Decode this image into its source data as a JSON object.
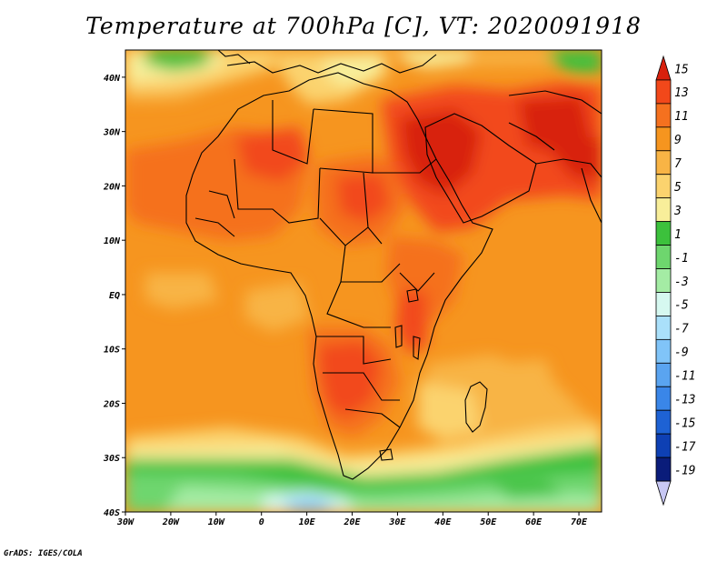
{
  "title": "Temperature at 700hPa [C], VT: 2020091918",
  "credit": "GrADS: IGES/COLA",
  "map": {
    "lon_range": [
      -30,
      75
    ],
    "lat_range": [
      -40,
      45
    ],
    "lon_ticks": [
      {
        "lon": -30,
        "label": "30W"
      },
      {
        "lon": -20,
        "label": "20W"
      },
      {
        "lon": -10,
        "label": "10W"
      },
      {
        "lon": 0,
        "label": "0"
      },
      {
        "lon": 10,
        "label": "10E"
      },
      {
        "lon": 20,
        "label": "20E"
      },
      {
        "lon": 30,
        "label": "30E"
      },
      {
        "lon": 40,
        "label": "40E"
      },
      {
        "lon": 50,
        "label": "50E"
      },
      {
        "lon": 60,
        "label": "60E"
      },
      {
        "lon": 70,
        "label": "70E"
      }
    ],
    "lat_ticks": [
      {
        "lat": 40,
        "label": "40N"
      },
      {
        "lat": 30,
        "label": "30N"
      },
      {
        "lat": 20,
        "label": "20N"
      },
      {
        "lat": 10,
        "label": "10N"
      },
      {
        "lat": 0,
        "label": "EQ"
      },
      {
        "lat": -10,
        "label": "10S"
      },
      {
        "lat": -20,
        "label": "20S"
      },
      {
        "lat": -30,
        "label": "30S"
      },
      {
        "lat": -40,
        "label": "40S"
      }
    ]
  },
  "colorbar": {
    "labels": [
      "15",
      "13",
      "11",
      "9",
      "7",
      "5",
      "3",
      "1",
      "-1",
      "-3",
      "-5",
      "-7",
      "-9",
      "-11",
      "-13",
      "-15",
      "-17",
      "-19"
    ],
    "colors": [
      "#d8200d",
      "#f2481a",
      "#f5711f",
      "#f6951f",
      "#f8b445",
      "#fbd36e",
      "#f8ee9a",
      "#3cc13c",
      "#6ed66e",
      "#a4eca4",
      "#d6f8f0",
      "#aae0fa",
      "#80c4f8",
      "#5aa4f0",
      "#3a86e8",
      "#1e62d4",
      "#0e40b4",
      "#0a1c7a",
      "#c8c8f4"
    ]
  }
}
